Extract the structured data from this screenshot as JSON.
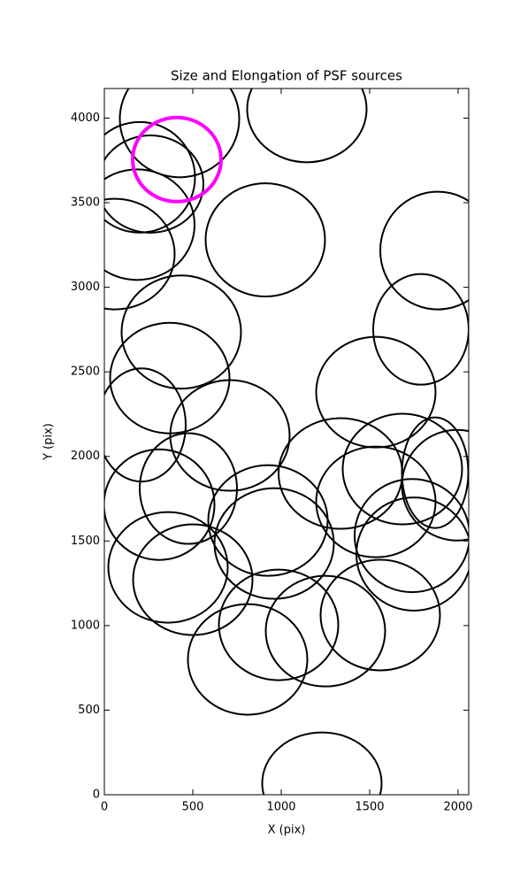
{
  "chart_data": {
    "type": "ellipse",
    "title": "Size and Elongation of PSF sources",
    "xlabel": "X (pix)",
    "ylabel": "Y (pix)",
    "xlim": [
      0,
      2060
    ],
    "ylim": [
      0,
      4175
    ],
    "xticks": [
      0,
      500,
      1000,
      1500,
      2000
    ],
    "yticks": [
      0,
      500,
      1000,
      1500,
      2000,
      2500,
      3000,
      3500,
      4000
    ],
    "series": [
      {
        "color": "#000000",
        "line_width": 2,
        "x": [
          425,
          200,
          260,
          185,
          60,
          1145,
          910,
          1885,
          1790,
          435,
          370,
          1535,
          210,
          710,
          310,
          475,
          1335,
          1685,
          1870,
          1995,
          925,
          1535,
          960,
          1740,
          1750,
          360,
          500,
          985,
          1250,
          1560,
          810,
          1230
        ],
        "y": [
          3995,
          3650,
          3610,
          3370,
          3196,
          4053,
          3280,
          3217,
          2751,
          2735,
          2463,
          2380,
          2186,
          2124,
          1715,
          1810,
          1899,
          1925,
          1904,
          1830,
          1621,
          1731,
          1485,
          1532,
          1423,
          1344,
          1271,
          1004,
          967,
          1062,
          800,
          68
        ],
        "width": [
          675,
          625,
          600,
          650,
          675,
          675,
          675,
          650,
          540,
          675,
          675,
          675,
          500,
          675,
          625,
          550,
          700,
          675,
          375,
          625,
          675,
          675,
          675,
          650,
          650,
          675,
          675,
          675,
          675,
          675,
          675,
          675
        ],
        "height": [
          690,
          654,
          575,
          654,
          654,
          628,
          669,
          696,
          654,
          669,
          654,
          654,
          669,
          654,
          654,
          654,
          654,
          654,
          654,
          654,
          654,
          654,
          654,
          669,
          669,
          654,
          654,
          654,
          654,
          654,
          654,
          601
        ]
      },
      {
        "color": "#ff00ff",
        "line_width": 4,
        "x": [
          410
        ],
        "y": [
          3755
        ],
        "width": [
          500
        ],
        "height": [
          497
        ]
      }
    ]
  }
}
